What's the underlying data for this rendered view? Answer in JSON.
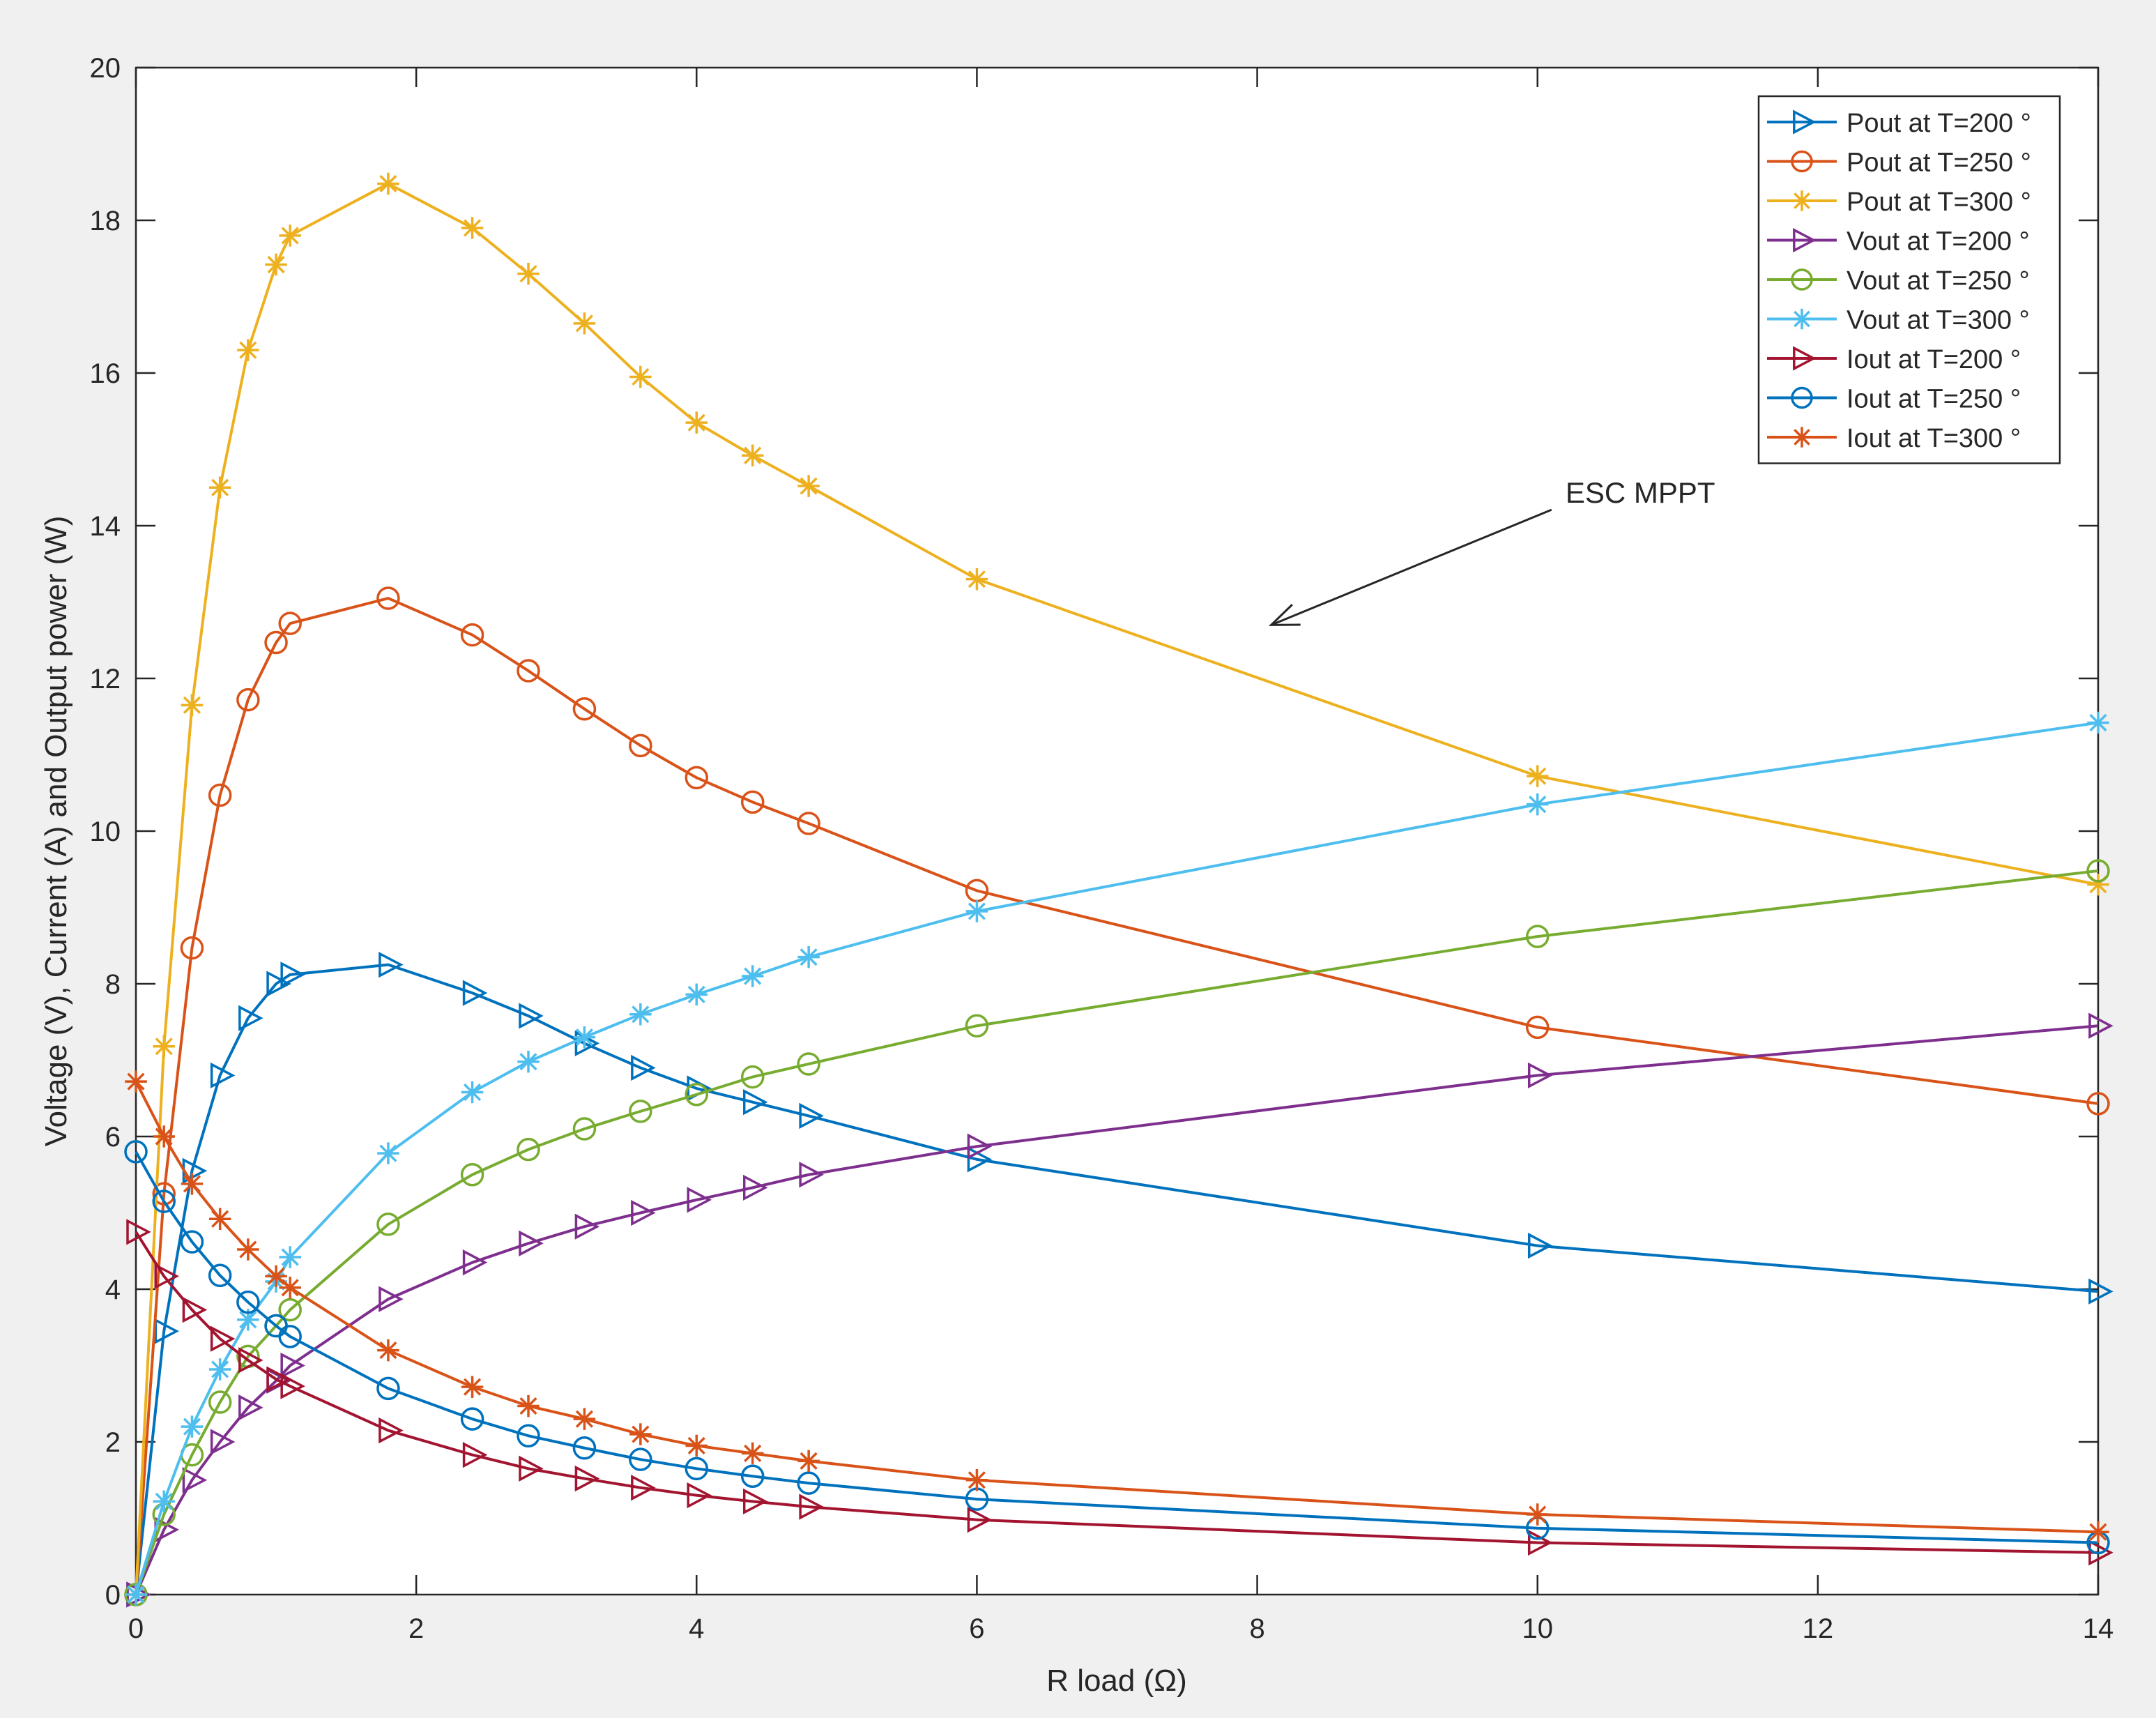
{
  "chart_data": {
    "type": "line",
    "title": "",
    "xlabel": "R load (Ω)",
    "ylabel": "Voltage (V), Current (A) and Output power (W)",
    "xlim": [
      0,
      14
    ],
    "ylim": [
      0,
      20
    ],
    "xticks": [
      0,
      2,
      4,
      6,
      8,
      10,
      12,
      14
    ],
    "yticks": [
      0,
      2,
      4,
      6,
      8,
      10,
      12,
      14,
      16,
      18,
      20
    ],
    "grid": false,
    "legend_position": "top-right",
    "x": [
      0,
      0.2,
      0.4,
      0.6,
      0.8,
      1.0,
      1.1,
      1.8,
      2.4,
      2.8,
      3.2,
      3.6,
      4.0,
      4.4,
      4.8,
      6,
      10,
      14
    ],
    "series": [
      {
        "name": "Pout at T=200 °",
        "color": "#0072bd",
        "marker": "triangle-right",
        "values": [
          0,
          3.45,
          5.55,
          6.8,
          7.55,
          8.0,
          8.12,
          8.25,
          7.88,
          7.58,
          7.22,
          6.9,
          6.63,
          6.45,
          6.27,
          5.7,
          4.57,
          3.97
        ]
      },
      {
        "name": "Pout at T=250 °",
        "color": "#d95319",
        "marker": "circle",
        "values": [
          0,
          5.25,
          8.47,
          10.47,
          11.72,
          12.47,
          12.72,
          13.05,
          12.57,
          12.1,
          11.6,
          11.12,
          10.7,
          10.38,
          10.1,
          9.22,
          7.43,
          6.43
        ]
      },
      {
        "name": "Pout at T=300 °",
        "color": "#edb120",
        "marker": "asterisk",
        "values": [
          0,
          7.18,
          11.65,
          14.5,
          16.3,
          17.42,
          17.8,
          18.48,
          17.9,
          17.3,
          16.65,
          15.95,
          15.35,
          14.92,
          14.52,
          13.3,
          10.72,
          9.3
        ]
      },
      {
        "name": "Vout at T=200 °",
        "color": "#7e2f8e",
        "marker": "triangle-right",
        "values": [
          0,
          0.85,
          1.5,
          2.0,
          2.45,
          2.8,
          3.0,
          3.87,
          4.35,
          4.6,
          4.82,
          5.0,
          5.17,
          5.33,
          5.5,
          5.87,
          6.8,
          7.45
        ]
      },
      {
        "name": "Vout at T=250 °",
        "color": "#77ac30",
        "marker": "circle",
        "values": [
          0,
          1.05,
          1.83,
          2.52,
          3.12,
          3.52,
          3.73,
          4.85,
          5.5,
          5.83,
          6.1,
          6.33,
          6.55,
          6.78,
          6.95,
          7.45,
          8.62,
          9.48
        ]
      },
      {
        "name": "Vout at T=300 °",
        "color": "#4dbeee",
        "marker": "asterisk",
        "values": [
          0,
          1.22,
          2.2,
          2.95,
          3.6,
          4.1,
          4.42,
          5.78,
          6.58,
          6.98,
          7.3,
          7.6,
          7.86,
          8.1,
          8.35,
          8.95,
          10.35,
          11.42
        ]
      },
      {
        "name": "Iout at T=200 °",
        "color": "#a2142f",
        "marker": "triangle-right",
        "values": [
          4.75,
          4.17,
          3.73,
          3.35,
          3.07,
          2.82,
          2.73,
          2.15,
          1.83,
          1.65,
          1.52,
          1.4,
          1.3,
          1.22,
          1.15,
          0.98,
          0.68,
          0.55
        ]
      },
      {
        "name": "Iout at T=250 °",
        "color": "#0072bd",
        "marker": "circle",
        "values": [
          5.8,
          5.15,
          4.62,
          4.18,
          3.83,
          3.52,
          3.38,
          2.7,
          2.3,
          2.08,
          1.92,
          1.77,
          1.65,
          1.55,
          1.46,
          1.25,
          0.87,
          0.68
        ]
      },
      {
        "name": "Iout at T=300 °",
        "color": "#d95319",
        "marker": "asterisk",
        "values": [
          6.72,
          6.0,
          5.38,
          4.92,
          4.52,
          4.17,
          4.02,
          3.2,
          2.72,
          2.47,
          2.3,
          2.1,
          1.95,
          1.85,
          1.75,
          1.5,
          1.05,
          0.82
        ]
      }
    ],
    "annotations": [
      {
        "text": "ESC MPPT",
        "x": 10.1,
        "y": 14.3,
        "arrow_to": [
          8.1,
          12.7
        ]
      }
    ]
  }
}
